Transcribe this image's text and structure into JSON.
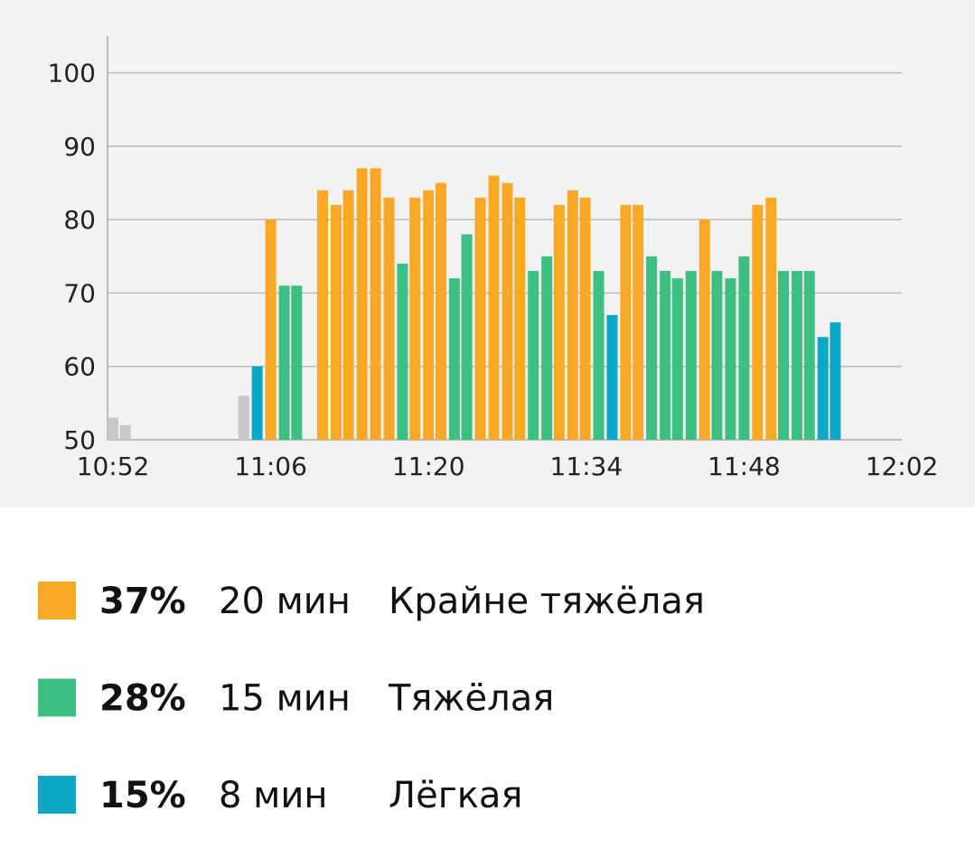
{
  "chart_data": {
    "type": "bar",
    "x": [
      0,
      1.1,
      11.6,
      12.8,
      14.0,
      15.2,
      16.3,
      18.6,
      19.8,
      20.9,
      22.1,
      23.3,
      24.5,
      25.7,
      26.8,
      28.0,
      29.1,
      30.3,
      31.4,
      32.6,
      33.8,
      35.0,
      36.1,
      37.3,
      38.5,
      39.6,
      40.8,
      41.9,
      43.1,
      44.3,
      45.5,
      46.6,
      47.8,
      49.0,
      50.1,
      51.3,
      52.5,
      53.6,
      54.8,
      56.0,
      57.2,
      58.4,
      59.5,
      60.7,
      61.8,
      63.0,
      64.1
    ],
    "values": [
      53,
      52,
      56,
      60,
      80,
      71,
      71,
      84,
      82,
      84,
      87,
      87,
      83,
      74,
      83,
      84,
      85,
      72,
      78,
      83,
      86,
      85,
      83,
      73,
      75,
      82,
      84,
      83,
      73,
      67,
      82,
      82,
      75,
      73,
      72,
      73,
      80,
      73,
      72,
      75,
      82,
      83,
      73,
      73,
      73,
      64,
      66
    ],
    "colors": [
      "#c8c8c8",
      "#c8c8c8",
      "#c8c8c8",
      "#0aa8c4",
      "#f9a825",
      "#3dbf82",
      "#3dbf82",
      "#f9a825",
      "#f9a825",
      "#f9a825",
      "#f9a825",
      "#f9a825",
      "#f9a825",
      "#3dbf82",
      "#f9a825",
      "#f9a825",
      "#f9a825",
      "#3dbf82",
      "#3dbf82",
      "#f9a825",
      "#f9a825",
      "#f9a825",
      "#f9a825",
      "#3dbf82",
      "#3dbf82",
      "#f9a825",
      "#f9a825",
      "#f9a825",
      "#3dbf82",
      "#0aa8c4",
      "#f9a825",
      "#f9a825",
      "#3dbf82",
      "#3dbf82",
      "#3dbf82",
      "#3dbf82",
      "#f9a825",
      "#3dbf82",
      "#3dbf82",
      "#3dbf82",
      "#f9a825",
      "#f9a825",
      "#3dbf82",
      "#3dbf82",
      "#3dbf82",
      "#0aa8c4",
      "#0aa8c4"
    ],
    "xlim": [
      0,
      70
    ],
    "xticks": [
      {
        "value": 0,
        "label": "10:52"
      },
      {
        "value": 14,
        "label": "11:06"
      },
      {
        "value": 28,
        "label": "11:20"
      },
      {
        "value": 42,
        "label": "11:34"
      },
      {
        "value": 56,
        "label": "11:48"
      },
      {
        "value": 70,
        "label": "12:02"
      }
    ],
    "ylim": [
      50,
      105
    ],
    "yticks": [
      50,
      60,
      70,
      80,
      90,
      100
    ],
    "grid": true
  },
  "summary": {
    "rows": [
      {
        "percent": "37%",
        "duration": "20 мин",
        "label": "Крайне тяжёлая",
        "color": "#f9a825"
      },
      {
        "percent": "28%",
        "duration": "15 мин",
        "label": "Тяжёлая",
        "color": "#3dbf82"
      },
      {
        "percent": "15%",
        "duration": "8 мин",
        "label": "Лёгкая",
        "color": "#0aa8c4"
      }
    ]
  }
}
